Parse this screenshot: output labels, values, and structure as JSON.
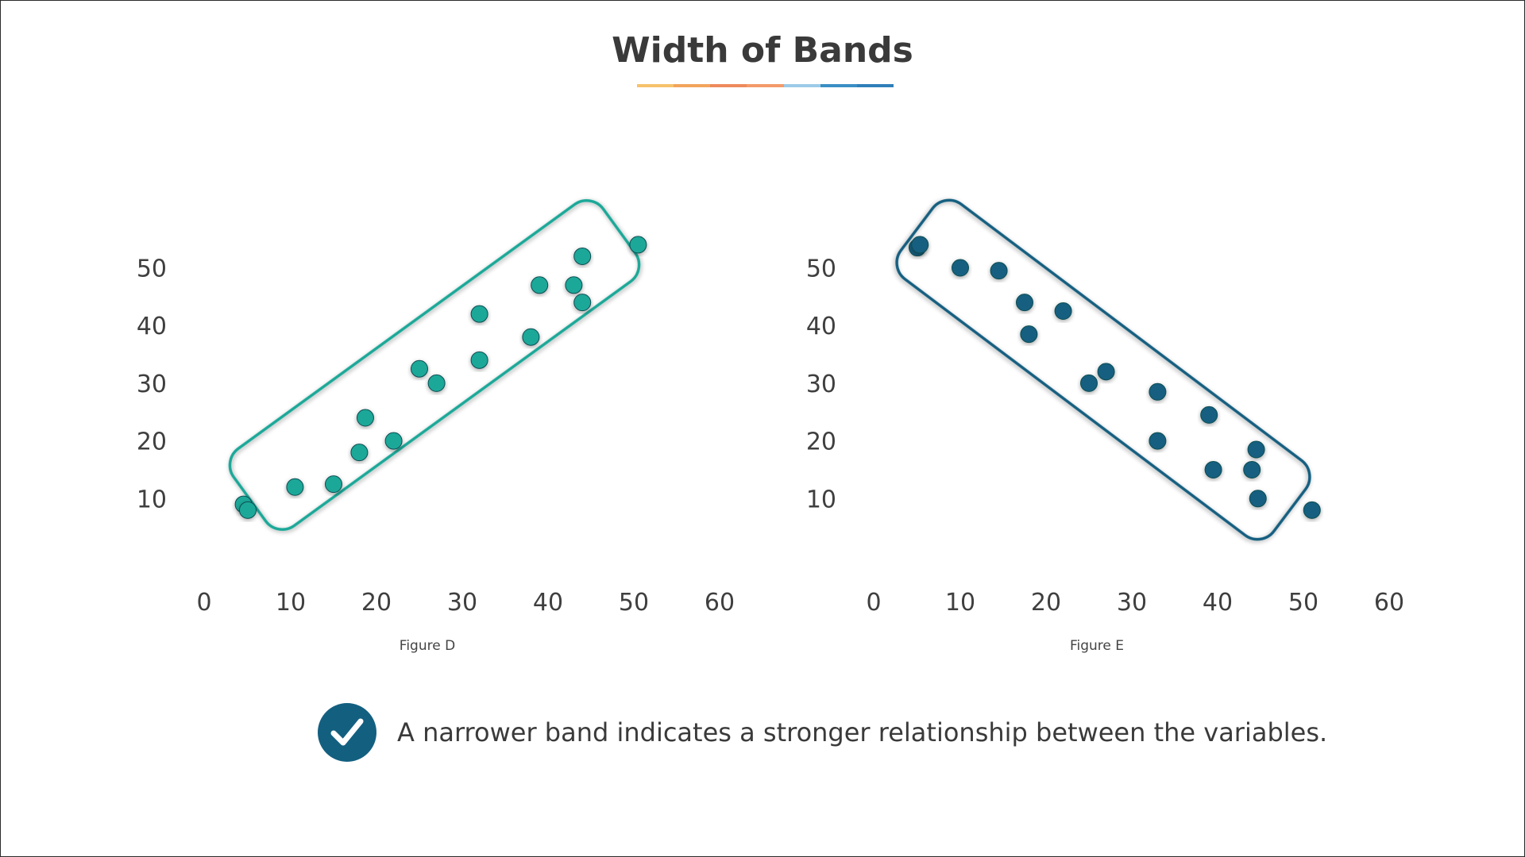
{
  "title": "Width of Bands",
  "colors": {
    "underline": [
      "#f6c26b",
      "#f2a45c",
      "#ee8a5c",
      "#f39a6a",
      "#9ccbe8",
      "#3a8ec4",
      "#2f7fb8"
    ],
    "figure_d": "#1aa898",
    "figure_e": "#135f80",
    "text": "#3a3a3a"
  },
  "note": {
    "icon": "checkmark-icon",
    "text": "A narrower band indicates a stronger relationship between the variables."
  },
  "chart_data": [
    {
      "type": "scatter",
      "caption": "Figure D",
      "xlim": [
        0,
        60
      ],
      "ylim": [
        0,
        55
      ],
      "xticks": [
        0,
        10,
        20,
        30,
        40,
        50,
        60
      ],
      "yticks": [
        10,
        20,
        30,
        40,
        50
      ],
      "grid": false,
      "band": "rounded-rectangle enclosing points, rising left to right",
      "x": [
        4.5,
        5,
        10.5,
        15,
        18,
        18.7,
        22,
        25,
        27,
        32,
        32,
        38,
        39,
        43,
        44,
        44,
        50.5
      ],
      "y": [
        9,
        8,
        12,
        12.5,
        18,
        24,
        20,
        32.5,
        30,
        34,
        42,
        38,
        47,
        47,
        52,
        44,
        54
      ]
    },
    {
      "type": "scatter",
      "caption": "Figure E",
      "xlim": [
        0,
        60
      ],
      "ylim": [
        0,
        55
      ],
      "xticks": [
        0,
        10,
        20,
        30,
        40,
        50,
        60
      ],
      "yticks": [
        10,
        20,
        30,
        40,
        50
      ],
      "grid": false,
      "band": "rounded-rectangle enclosing points, falling left to right",
      "x": [
        5,
        5.3,
        10,
        14.5,
        17.5,
        18,
        22,
        25,
        27,
        33,
        33,
        39,
        39.5,
        44,
        44.5,
        44.7,
        51
      ],
      "y": [
        53.5,
        54,
        50,
        49.5,
        44,
        38.5,
        42.5,
        30,
        32,
        28.5,
        20,
        24.5,
        15,
        15,
        18.5,
        10,
        8
      ]
    }
  ]
}
